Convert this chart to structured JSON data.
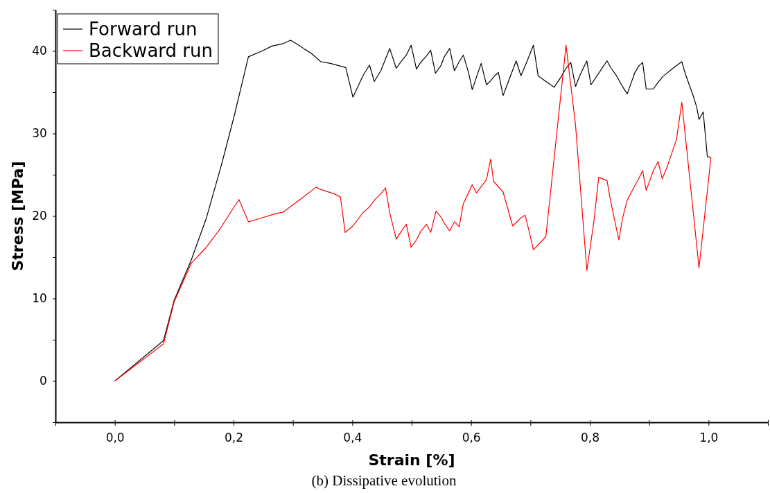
{
  "chart_data": {
    "type": "line",
    "xlabel": "Strain [%]",
    "ylabel": "Stress [MPa]",
    "annotations": [
      "(b) Dissipative evolution"
    ],
    "xlim": [
      -0.1,
      1.1
    ],
    "ylim": [
      -5,
      45
    ],
    "xticks": [
      {
        "value": -0.1,
        "label": null
      },
      {
        "value": 0,
        "label": "0,0"
      },
      {
        "value": 0.1,
        "label": null
      },
      {
        "value": 0.2,
        "label": "0,2"
      },
      {
        "value": 0.3,
        "label": null
      },
      {
        "value": 0.4,
        "label": "0,4"
      },
      {
        "value": 0.5,
        "label": null
      },
      {
        "value": 0.6,
        "label": "0,6"
      },
      {
        "value": 0.7,
        "label": null
      },
      {
        "value": 0.8,
        "label": "0,8"
      },
      {
        "value": 0.9,
        "label": null
      },
      {
        "value": 1.0,
        "label": "1,0"
      },
      {
        "value": 1.1,
        "label": null
      }
    ],
    "yticks": [
      {
        "value": -5,
        "label": null
      },
      0,
      {
        "value": 5,
        "label": null
      },
      10,
      {
        "value": 15,
        "label": null
      },
      20,
      {
        "value": 25,
        "label": null
      },
      30,
      {
        "value": 35,
        "label": null
      },
      40,
      {
        "value": 45,
        "label": null
      }
    ],
    "grid": false,
    "legend": "top left",
    "line_style": "solid",
    "marker": "none",
    "series": [
      {
        "name": "Forward run",
        "color": "#000000",
        "x": [
          0,
          0.082,
          0.1,
          0.129,
          0.154,
          0.18,
          0.201,
          0.225,
          0.248,
          0.265,
          0.284,
          0.296,
          0.308,
          0.32,
          0.331,
          0.347,
          0.363,
          0.389,
          0.401,
          0.418,
          0.429,
          0.437,
          0.448,
          0.463,
          0.474,
          0.483,
          0.491,
          0.499,
          0.508,
          0.515,
          0.525,
          0.532,
          0.54,
          0.549,
          0.555,
          0.564,
          0.572,
          0.58,
          0.587,
          0.596,
          0.602,
          0.617,
          0.626,
          0.633,
          0.64,
          0.646,
          0.654,
          0.665,
          0.676,
          0.684,
          0.694,
          0.705,
          0.713,
          0.724,
          0.74,
          0.752,
          0.76,
          0.768,
          0.776,
          0.783,
          0.795,
          0.802,
          0.815,
          0.829,
          0.836,
          0.845,
          0.855,
          0.863,
          0.876,
          0.883,
          0.889,
          0.895,
          0.907,
          0.914,
          0.923,
          0.94,
          0.955,
          0.961,
          0.974,
          0.98,
          0.984,
          0.991,
          0.998,
          1.004
        ],
        "values": [
          0,
          4.9,
          9.8,
          14.7,
          19.7,
          26.3,
          32.1,
          39.3,
          40.0,
          40.6,
          40.9,
          41.3,
          40.8,
          40.2,
          39.7,
          38.7,
          38.5,
          38.0,
          34.4,
          37.0,
          38.3,
          36.3,
          37.6,
          40.3,
          37.9,
          38.8,
          39.5,
          40.7,
          37.8,
          38.6,
          39.4,
          40.1,
          37.3,
          38.2,
          39.3,
          40.3,
          37.6,
          38.7,
          39.5,
          37.3,
          35.3,
          38.5,
          35.9,
          36.4,
          37.0,
          37.4,
          34.6,
          36.7,
          38.8,
          37.0,
          38.7,
          40.7,
          37.0,
          36.4,
          35.6,
          36.9,
          37.9,
          38.6,
          35.7,
          37.0,
          38.8,
          35.9,
          37.3,
          38.8,
          37.9,
          37.0,
          35.7,
          34.8,
          37.4,
          38.2,
          38.6,
          35.4,
          35.4,
          36.1,
          36.9,
          37.9,
          38.7,
          37.2,
          34.6,
          33.2,
          31.7,
          32.6,
          27.2,
          27.1
        ]
      },
      {
        "name": "Backward run",
        "color": "#ff0000",
        "x": [
          0,
          0.082,
          0.1,
          0.129,
          0.154,
          0.176,
          0.209,
          0.225,
          0.24,
          0.267,
          0.284,
          0.312,
          0.339,
          0.347,
          0.369,
          0.38,
          0.388,
          0.401,
          0.418,
          0.429,
          0.437,
          0.448,
          0.456,
          0.463,
          0.474,
          0.483,
          0.491,
          0.499,
          0.508,
          0.515,
          0.525,
          0.532,
          0.541,
          0.549,
          0.555,
          0.564,
          0.572,
          0.58,
          0.587,
          0.595,
          0.602,
          0.609,
          0.626,
          0.633,
          0.638,
          0.654,
          0.67,
          0.676,
          0.683,
          0.691,
          0.698,
          0.705,
          0.726,
          0.76,
          0.776,
          0.795,
          0.807,
          0.815,
          0.829,
          0.835,
          0.849,
          0.855,
          0.863,
          0.876,
          0.883,
          0.889,
          0.895,
          0.907,
          0.915,
          0.922,
          0.931,
          0.946,
          0.955,
          0.984,
          1.004
        ],
        "values": [
          0,
          4.5,
          9.6,
          14.3,
          16.2,
          18.3,
          22.0,
          19.3,
          19.6,
          20.2,
          20.5,
          22.0,
          23.5,
          23.2,
          22.7,
          22.3,
          18.0,
          18.8,
          20.4,
          21.1,
          21.9,
          22.7,
          23.4,
          20.4,
          17.2,
          18.2,
          19.0,
          16.2,
          17.1,
          18.1,
          19.0,
          18.0,
          20.6,
          19.9,
          19.1,
          18.2,
          19.3,
          18.7,
          21.5,
          22.7,
          23.8,
          22.8,
          24.4,
          26.9,
          24.2,
          22.9,
          18.8,
          19.2,
          19.7,
          20.1,
          18.1,
          15.9,
          17.5,
          40.7,
          31.0,
          13.4,
          19.4,
          24.7,
          24.3,
          21.8,
          17.1,
          19.7,
          21.9,
          23.7,
          24.6,
          25.5,
          23.1,
          25.5,
          26.6,
          24.5,
          26.1,
          29.3,
          33.8,
          13.7,
          27.1
        ]
      }
    ]
  }
}
